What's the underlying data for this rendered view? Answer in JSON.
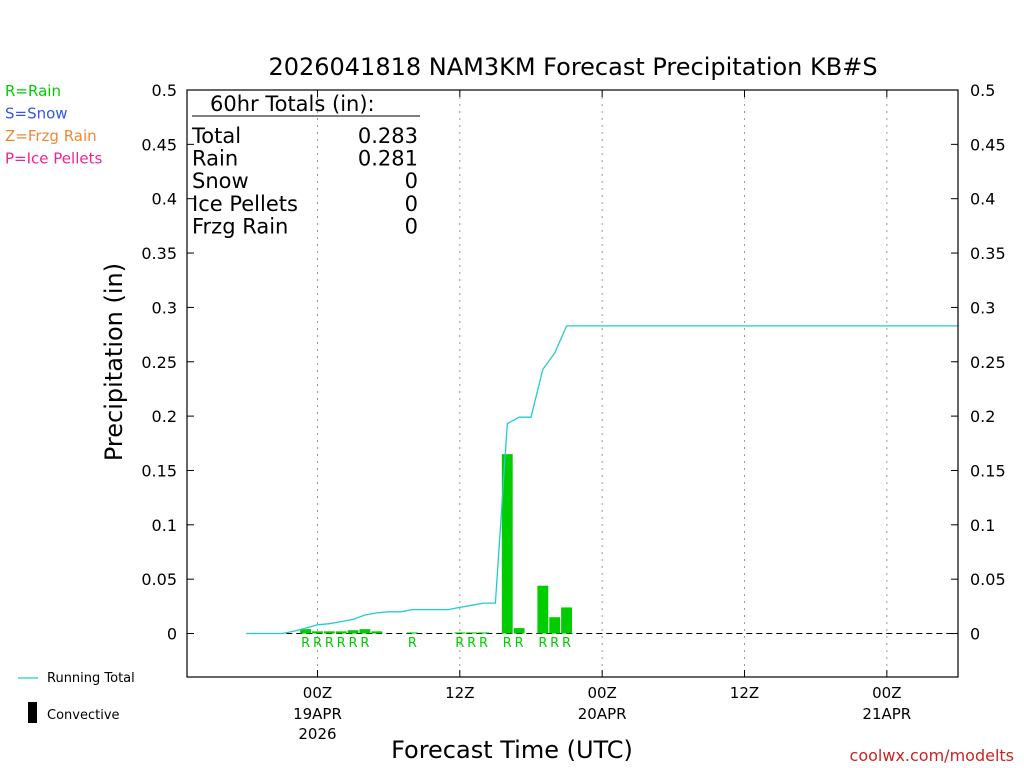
{
  "title": "2026041818 NAM3KM Forecast Precipitation KB#S",
  "ylabel": "Precipitation (in)",
  "xlabel": "Forecast Time (UTC)",
  "credit": "coolwx.com/modelts",
  "colors": {
    "rain": "#00cc00",
    "snow": "#3355ee",
    "frzg_rain": "#ee8833",
    "ice_pellets": "#ee2299",
    "running_total": "#22cccc",
    "axis": "#000000"
  },
  "precip_type_legend": [
    {
      "label": "R=Rain",
      "color": "#00cc00"
    },
    {
      "label": "S=Snow",
      "color": "#3355ee"
    },
    {
      "label": "Z=Frzg Rain",
      "color": "#ee8833"
    },
    {
      "label": "P=Ice Pellets",
      "color": "#ee2299"
    }
  ],
  "line_legend": {
    "running_total": "Running Total",
    "convective": "Convective"
  },
  "totals": {
    "heading": "60hr Totals (in):",
    "rows": [
      {
        "label": "Total",
        "value": "0.283"
      },
      {
        "label": "Rain",
        "value": "0.281"
      },
      {
        "label": "Snow",
        "value": "0"
      },
      {
        "label": "Ice Pellets",
        "value": "0"
      },
      {
        "label": "Frzg Rain",
        "value": "0"
      }
    ]
  },
  "chart_data": {
    "type": "bar",
    "x_unit": "hours after 2026041818",
    "xlim": [
      -5,
      60
    ],
    "ylim": [
      -0.04,
      0.5
    ],
    "yticks": [
      0,
      0.05,
      0.1,
      0.15,
      0.2,
      0.25,
      0.3,
      0.35,
      0.4,
      0.45,
      0.5
    ],
    "ytick_labels": [
      "0",
      "0.05",
      "0.1",
      "0.15",
      "0.2",
      "0.25",
      "0.3",
      "0.35",
      "0.4",
      "0.45",
      "0.5"
    ],
    "xticks": [
      {
        "x": 6,
        "label": "00Z",
        "date": "19APR",
        "year": "2026"
      },
      {
        "x": 18,
        "label": "12Z",
        "date": "",
        "year": ""
      },
      {
        "x": 30,
        "label": "00Z",
        "date": "20APR",
        "year": ""
      },
      {
        "x": 42,
        "label": "12Z",
        "date": "",
        "year": ""
      },
      {
        "x": 54,
        "label": "00Z",
        "date": "21APR",
        "year": ""
      }
    ],
    "grid": "vertical dotted at x ticks",
    "series": [
      {
        "kind": "bar",
        "x": [
          5,
          6,
          7,
          8,
          9,
          10,
          11,
          14,
          18,
          19,
          20,
          22,
          23,
          25,
          26,
          27
        ],
        "values": [
          0.004,
          0.002,
          0.002,
          0.002,
          0.003,
          0.004,
          0.002,
          0.001,
          0.001,
          0.001,
          0.001,
          0.165,
          0.005,
          0.044,
          0.015,
          0.024
        ],
        "types": [
          "R",
          "R",
          "R",
          "R",
          "R",
          "R",
          "",
          "R",
          "R",
          "R",
          "R",
          "R",
          "R",
          "R",
          "R",
          "R"
        ]
      },
      {
        "kind": "line",
        "name": "Running Total",
        "x": [
          0,
          1,
          2,
          3,
          4,
          5,
          6,
          7,
          8,
          9,
          10,
          11,
          12,
          13,
          14,
          15,
          16,
          17,
          18,
          19,
          20,
          21,
          22,
          23,
          24,
          25,
          26,
          27,
          28,
          60
        ],
        "values": [
          0,
          0,
          0,
          0,
          0.002,
          0.005,
          0.008,
          0.009,
          0.011,
          0.013,
          0.017,
          0.019,
          0.02,
          0.02,
          0.022,
          0.022,
          0.022,
          0.022,
          0.024,
          0.026,
          0.028,
          0.028,
          0.193,
          0.199,
          0.199,
          0.243,
          0.258,
          0.283,
          0.283,
          0.283
        ]
      }
    ]
  }
}
